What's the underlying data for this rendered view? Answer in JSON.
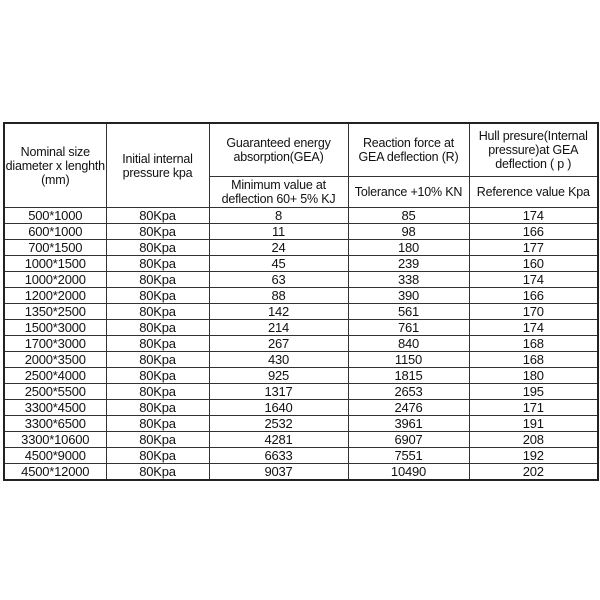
{
  "headers": {
    "nominal_size": "Nominal size diameter  x lenghth (mm)",
    "initial_pressure": "Initial internal pressure kpa",
    "gea": "Guaranteed energy absorption(GEA)",
    "reaction_force": "Reaction force at GEA deflection (R)",
    "hull_pressure": "Hull presure(Internal pressure)at GEA deflection ( p )",
    "gea_sub": "Minimum value at deflection 60+ 5% KJ",
    "reaction_sub": "Tolerance +10% KN",
    "hull_sub": "Reference value Kpa"
  },
  "rows": [
    [
      "500*1000",
      "80Kpa",
      "8",
      "85",
      "174"
    ],
    [
      "600*1000",
      "80Kpa",
      "11",
      "98",
      "166"
    ],
    [
      "700*1500",
      "80Kpa",
      "24",
      "180",
      "177"
    ],
    [
      "1000*1500",
      "80Kpa",
      "45",
      "239",
      "160"
    ],
    [
      "1000*2000",
      "80Kpa",
      "63",
      "338",
      "174"
    ],
    [
      "1200*2000",
      "80Kpa",
      "88",
      "390",
      "166"
    ],
    [
      "1350*2500",
      "80Kpa",
      "142",
      "561",
      "170"
    ],
    [
      "1500*3000",
      "80Kpa",
      "214",
      "761",
      "174"
    ],
    [
      "1700*3000",
      "80Kpa",
      "267",
      "840",
      "168"
    ],
    [
      "2000*3500",
      "80Kpa",
      "430",
      "1150",
      "168"
    ],
    [
      "2500*4000",
      "80Kpa",
      "925",
      "1815",
      "180"
    ],
    [
      "2500*5500",
      "80Kpa",
      "1317",
      "2653",
      "195"
    ],
    [
      "3300*4500",
      "80Kpa",
      "1640",
      "2476",
      "171"
    ],
    [
      "3300*6500",
      "80Kpa",
      "2532",
      "3961",
      "191"
    ],
    [
      "3300*10600",
      "80Kpa",
      "4281",
      "6907",
      "208"
    ],
    [
      "4500*9000",
      "80Kpa",
      "6633",
      "7551",
      "192"
    ],
    [
      "4500*12000",
      "80Kpa",
      "9037",
      "10490",
      "202"
    ]
  ]
}
